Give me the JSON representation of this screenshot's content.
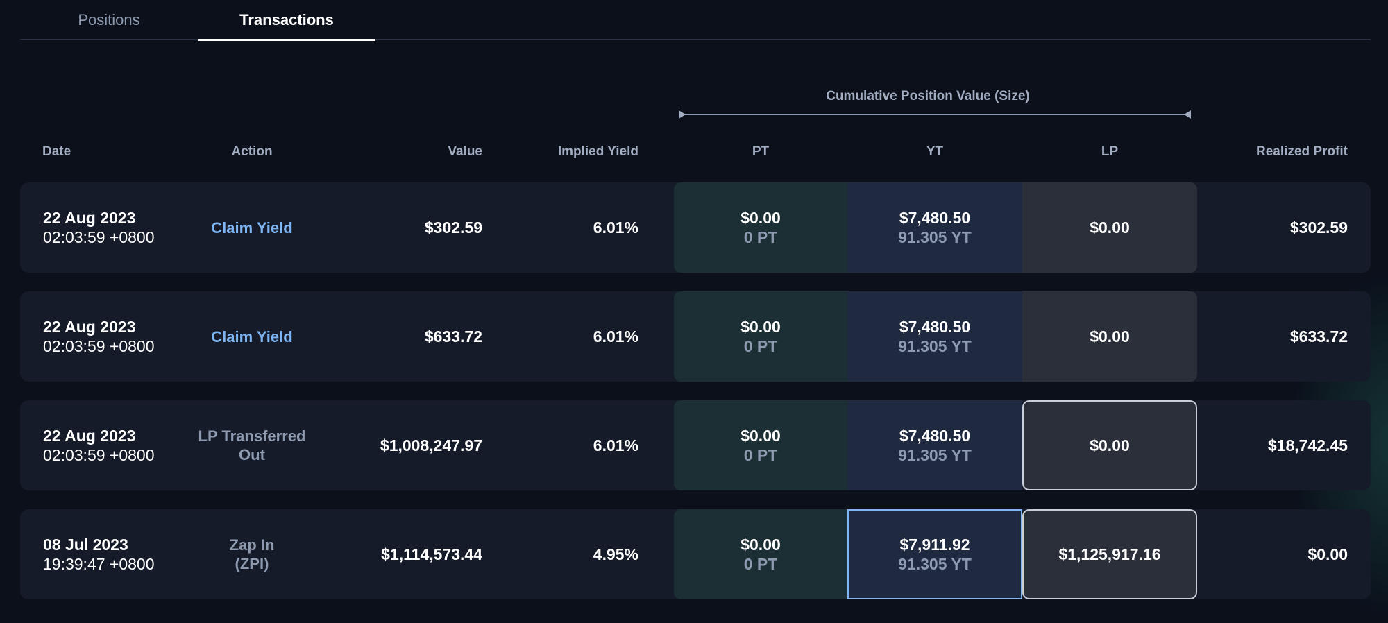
{
  "tabs": [
    {
      "label": "Positions",
      "active": false
    },
    {
      "label": "Transactions",
      "active": true
    }
  ],
  "cumulative_header": "Cumulative Position Value (Size)",
  "columns": {
    "date": "Date",
    "action": "Action",
    "value": "Value",
    "implied_yield": "Implied Yield",
    "pt": "PT",
    "yt": "YT",
    "lp": "LP",
    "realized_profit": "Realized Profit"
  },
  "colors": {
    "accent_blue": "#7eb5f2",
    "pt_bg": "#1b2f34",
    "yt_bg": "#1f2a40",
    "lp_bg": "#2a2f3a"
  },
  "rows": [
    {
      "date": "22 Aug 2023",
      "time": "02:03:59 +0800",
      "action_line1": "Claim Yield",
      "action_line2": "",
      "value": "$302.59",
      "implied_yield": "6.01%",
      "pt_value": "$0.00",
      "pt_amount": "0 PT",
      "yt_value": "$7,480.50",
      "yt_amount": "91.305 YT",
      "lp_value": "$0.00",
      "realized_profit": "$302.59"
    },
    {
      "date": "22 Aug 2023",
      "time": "02:03:59 +0800",
      "action_line1": "Claim Yield",
      "action_line2": "",
      "value": "$633.72",
      "implied_yield": "6.01%",
      "pt_value": "$0.00",
      "pt_amount": "0 PT",
      "yt_value": "$7,480.50",
      "yt_amount": "91.305 YT",
      "lp_value": "$0.00",
      "realized_profit": "$633.72"
    },
    {
      "date": "22 Aug 2023",
      "time": "02:03:59 +0800",
      "action_line1": "LP Transferred",
      "action_line2": "Out",
      "value": "$1,008,247.97",
      "implied_yield": "6.01%",
      "pt_value": "$0.00",
      "pt_amount": "0 PT",
      "yt_value": "$7,480.50",
      "yt_amount": "91.305 YT",
      "lp_value": "$0.00",
      "realized_profit": "$18,742.45"
    },
    {
      "date": "08 Jul 2023",
      "time": "19:39:47 +0800",
      "action_line1": "Zap In",
      "action_line2": "(ZPI)",
      "value": "$1,114,573.44",
      "implied_yield": "4.95%",
      "pt_value": "$0.00",
      "pt_amount": "0 PT",
      "yt_value": "$7,911.92",
      "yt_amount": "91.305 YT",
      "lp_value": "$1,125,917.16",
      "realized_profit": "$0.00"
    }
  ]
}
